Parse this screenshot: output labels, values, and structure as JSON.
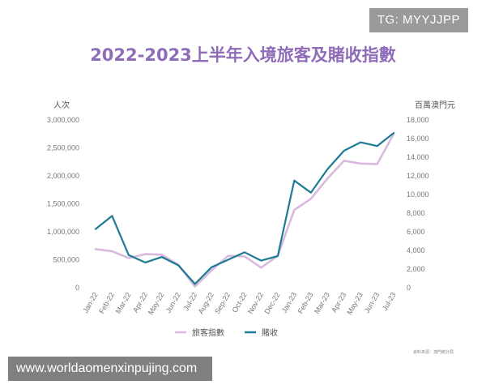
{
  "badge": "TG: MYYJJPP",
  "watermark": "www.worldaomenxinpujing.com",
  "source_note": "資料來源：澳門統計局",
  "chart_data": {
    "type": "line",
    "title": "2022-2023上半年入境旅客及賭收指數",
    "ylabel_left": "人次",
    "ylabel_right": "百萬澳門元",
    "ylim_left": [
      0,
      3000000
    ],
    "ylim_right": [
      0,
      18000
    ],
    "yticks_left": [
      "3,000,000",
      "2,500,000",
      "2,000,000",
      "1,500,000",
      "1,000,000",
      "500,000",
      "0"
    ],
    "yticks_right": [
      "18,000",
      "16,000",
      "14,000",
      "12,000",
      "10,000",
      "8,000",
      "6,000",
      "4,000",
      "2,000",
      "0"
    ],
    "categories": [
      "Jan-22",
      "Feb-22",
      "Mar-22",
      "Apr-22",
      "May-22",
      "Jun-22",
      "Jul-22",
      "Aug-22",
      "Sep-22",
      "Oct-22",
      "Nov-22",
      "Dec-22",
      "Jan-23",
      "Feb-23",
      "Mar-23",
      "Apr-23",
      "May-23",
      "Jun-23",
      "Jul-23"
    ],
    "legend_position": "bottom",
    "series": [
      {
        "name": "旅客指數",
        "axis": "left",
        "color": "#D9B9DE",
        "values": [
          690000,
          650000,
          530000,
          600000,
          590000,
          410000,
          20000,
          310000,
          570000,
          560000,
          360000,
          570000,
          1390000,
          1590000,
          1950000,
          2270000,
          2220000,
          2210000,
          2750000
        ]
      },
      {
        "name": "賭收",
        "axis": "right",
        "color": "#1F7A93",
        "values": [
          6300,
          7700,
          3500,
          2700,
          3300,
          2400,
          400,
          2200,
          3000,
          3800,
          2900,
          3400,
          11500,
          10200,
          12700,
          14700,
          15600,
          15200,
          16600
        ]
      }
    ]
  }
}
